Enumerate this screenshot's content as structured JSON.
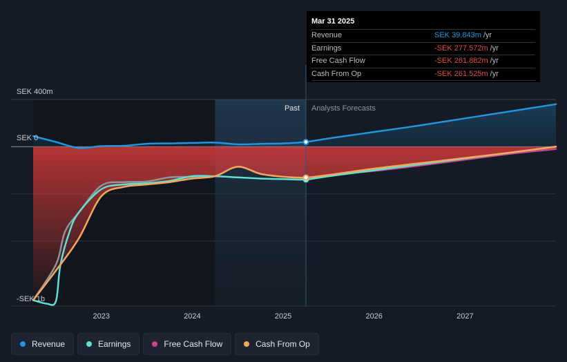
{
  "chart_data": {
    "type": "area",
    "y_axis_labels": {
      "top": "SEK 400m",
      "zero": "SEK 0",
      "bottom": "-SEK 1b"
    },
    "ylim": [
      -1350,
      400
    ],
    "xlim": [
      2022.25,
      2028.0
    ],
    "x_ticks": [
      "2023",
      "2024",
      "2025",
      "2026",
      "2027"
    ],
    "x_tick_values": [
      2023.0,
      2024.0,
      2025.0,
      2026.0,
      2027.0
    ],
    "divider_x": 2025.25,
    "forecast_start_x": 2024.25,
    "past_label": "Past",
    "forecast_label": "Analysts Forecasts",
    "series": [
      {
        "name": "Revenue",
        "color": "#2394df",
        "x": [
          2022.25,
          2022.5,
          2022.75,
          2023.0,
          2023.25,
          2023.5,
          2023.75,
          2024.0,
          2024.25,
          2024.5,
          2024.75,
          2025.0,
          2025.25,
          2025.5,
          2026.0,
          2026.5,
          2027.0,
          2027.5,
          2028.0
        ],
        "y": [
          90,
          40,
          -10,
          5,
          8,
          25,
          28,
          32,
          35,
          20,
          24,
          28,
          39.843,
          70,
          125,
          180,
          240,
          300,
          360
        ]
      },
      {
        "name": "Earnings",
        "color": "#5ee0d4",
        "x": [
          2022.25,
          2022.4,
          2022.5,
          2022.55,
          2022.65,
          2022.75,
          2023.0,
          2023.25,
          2023.5,
          2023.75,
          2024.0,
          2024.25,
          2024.5,
          2024.75,
          2025.0,
          2025.25,
          2025.5,
          2026.0,
          2026.5,
          2027.0,
          2027.5,
          2028.0
        ],
        "y": [
          -1300,
          -1330,
          -1310,
          -1000,
          -720,
          -560,
          -360,
          -320,
          -310,
          -290,
          -250,
          -250,
          -260,
          -270,
          -275,
          -277.572,
          -250,
          -200,
          -150,
          -100,
          -50,
          0
        ]
      },
      {
        "name": "Free Cash Flow",
        "color": "#c9438f",
        "x": [
          2022.25,
          2022.5,
          2022.75,
          2023.0,
          2023.25,
          2023.5,
          2023.75,
          2024.0,
          2024.25,
          2024.5,
          2024.75,
          2025.0,
          2025.25,
          2025.5,
          2026.0,
          2026.5,
          2027.0,
          2027.5,
          2028.0
        ],
        "y": [
          -1300,
          -1050,
          -780,
          -420,
          -340,
          -320,
          -300,
          -270,
          -250,
          -170,
          -230,
          -255,
          -261.882,
          -240,
          -205,
          -160,
          -110,
          -60,
          -20
        ]
      },
      {
        "name": "Cash From Op",
        "color": "#f0a95b",
        "x": [
          2022.25,
          2022.5,
          2022.75,
          2023.0,
          2023.25,
          2023.5,
          2023.75,
          2024.0,
          2024.25,
          2024.5,
          2024.75,
          2025.0,
          2025.25,
          2025.5,
          2026.0,
          2026.5,
          2027.0,
          2027.5,
          2028.0
        ],
        "y": [
          -1300,
          -1050,
          -780,
          -420,
          -340,
          -320,
          -300,
          -270,
          -250,
          -170,
          -230,
          -255,
          -261.525,
          -240,
          -185,
          -140,
          -95,
          -50,
          0
        ]
      }
    ],
    "gray_history": {
      "color": "#8f959c",
      "x": [
        2022.25,
        2022.5,
        2022.6,
        2022.75,
        2023.0,
        2023.25,
        2023.5,
        2023.75,
        2024.0,
        2024.25
      ],
      "y": [
        -1300,
        -1000,
        -720,
        -560,
        -330,
        -300,
        -295,
        -260,
        -255,
        -250
      ]
    }
  },
  "tooltip": {
    "date": "Mar 31 2025",
    "rows": [
      {
        "label": "Revenue",
        "value": "SEK 39.843m",
        "unit": "/yr",
        "color": "#2394df"
      },
      {
        "label": "Earnings",
        "value": "-SEK 277.572m",
        "unit": "/yr",
        "color": "#e84545"
      },
      {
        "label": "Free Cash Flow",
        "value": "-SEK 261.882m",
        "unit": "/yr",
        "color": "#e84545"
      },
      {
        "label": "Cash From Op",
        "value": "-SEK 261.525m",
        "unit": "/yr",
        "color": "#e84545"
      }
    ]
  },
  "legend": [
    {
      "label": "Revenue",
      "color": "#2394df"
    },
    {
      "label": "Earnings",
      "color": "#5ee0d4"
    },
    {
      "label": "Free Cash Flow",
      "color": "#c9438f"
    },
    {
      "label": "Cash From Op",
      "color": "#f0a95b"
    }
  ]
}
